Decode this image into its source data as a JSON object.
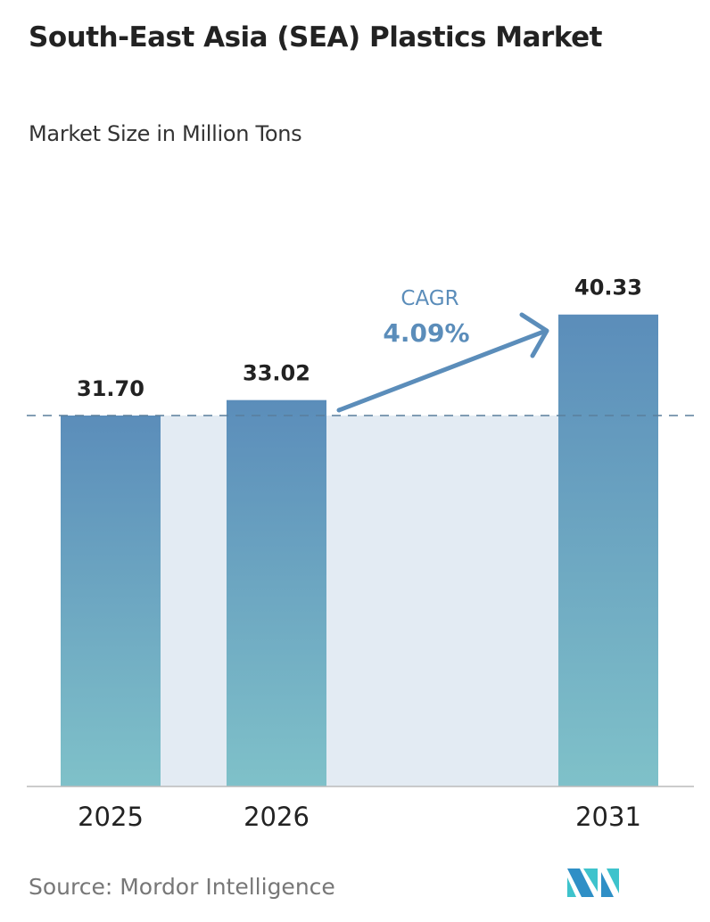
{
  "title": "South-East Asia (SEA) Plastics Market",
  "subtitle": "Market Size in Million Tons",
  "source": "Source:  Mordor Intelligence",
  "chart_data": {
    "type": "bar",
    "categories": [
      "2025",
      "2026",
      "2031"
    ],
    "values": [
      31.7,
      33.02,
      40.33
    ],
    "value_labels": [
      "31.70",
      "33.02",
      "40.33"
    ],
    "ylim": [
      0,
      40.33
    ],
    "grid": false,
    "annotation": {
      "label": "CAGR",
      "value": "4.09%"
    },
    "colors": {
      "bar_top": "#5b8dba",
      "bar_bottom": "#7fc1c9",
      "band": "#e3ebf3",
      "annotation": "#5b8dba"
    }
  }
}
